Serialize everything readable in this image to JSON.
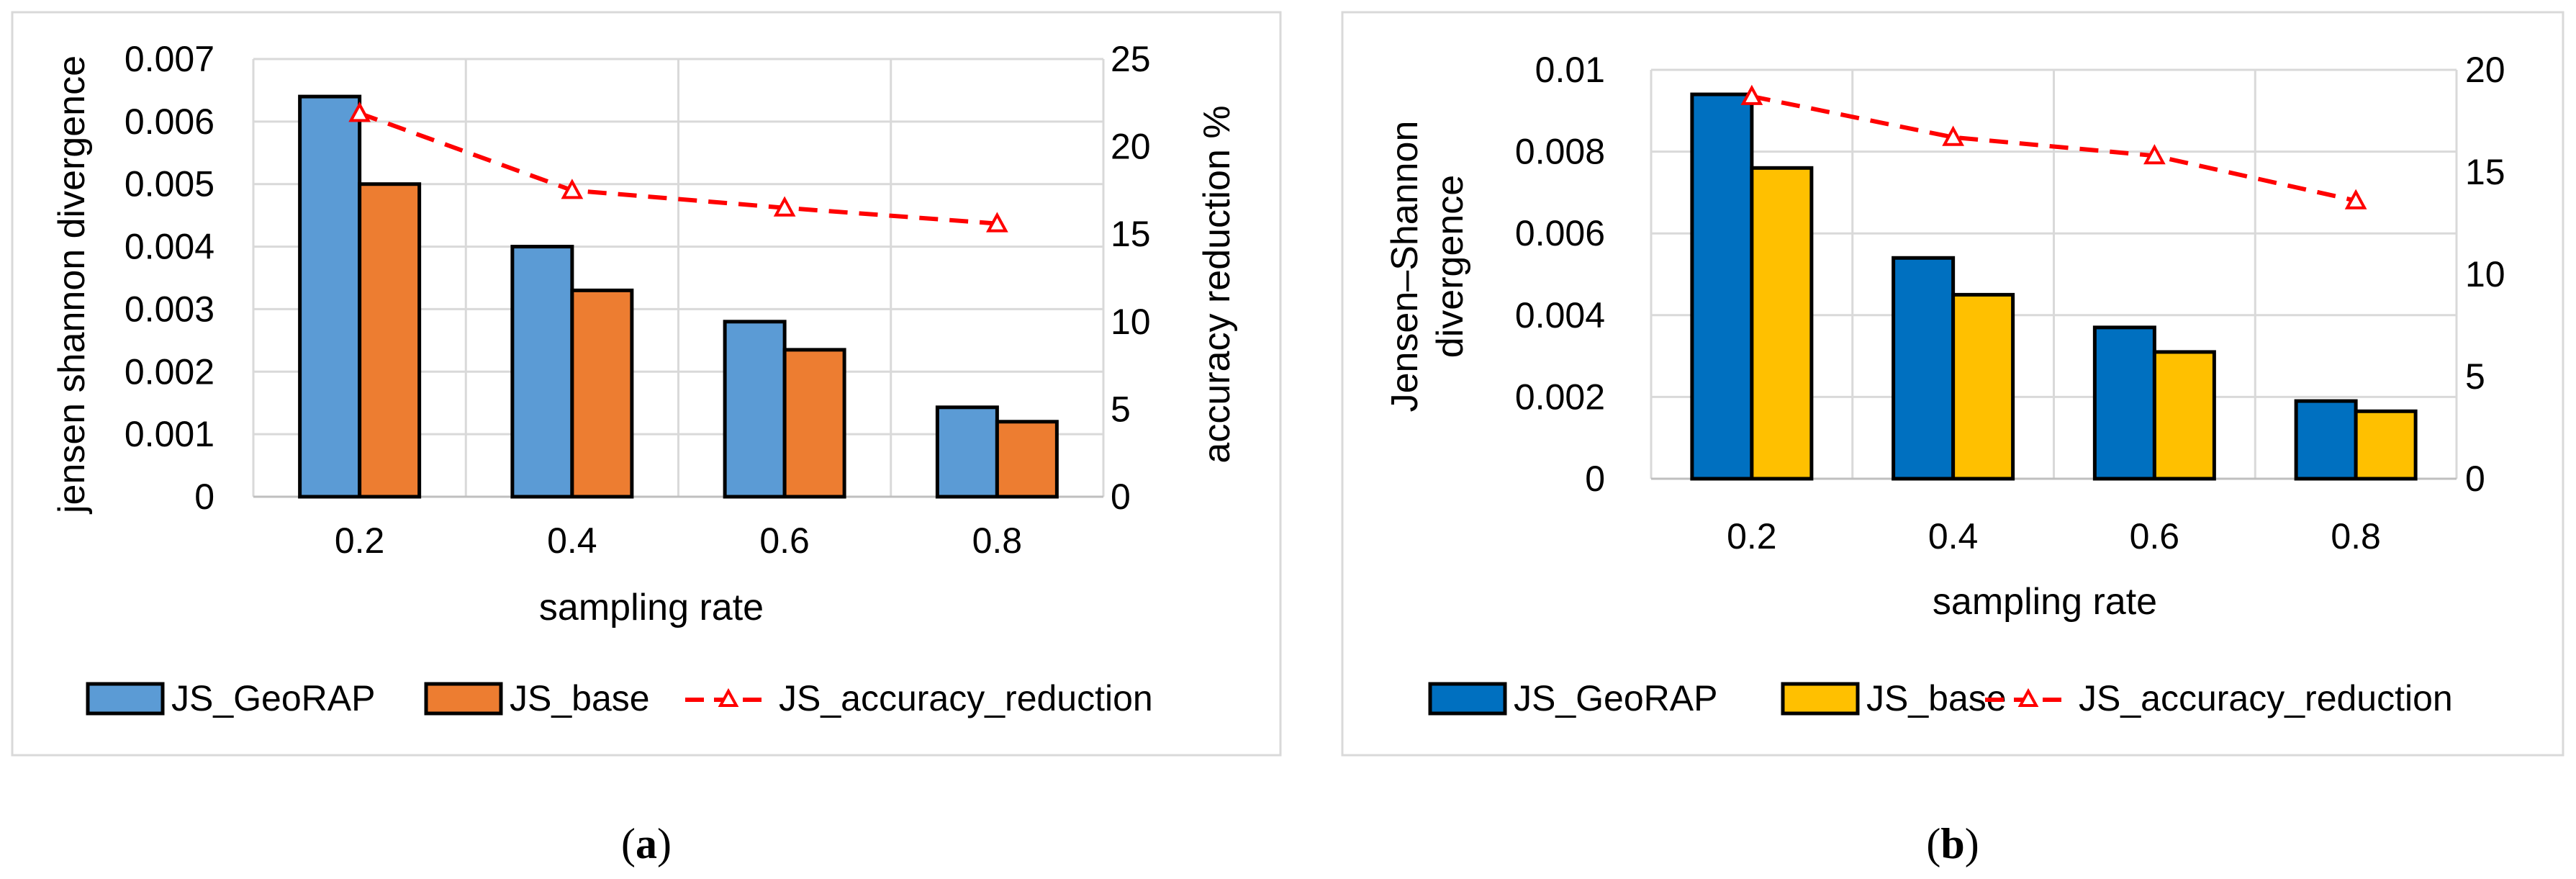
{
  "chart_data": [
    {
      "type": "bar",
      "panel": "a",
      "caption_letter": "a",
      "categories": [
        "0.2",
        "0.4",
        "0.6",
        "0.8"
      ],
      "xlabel": "sampling rate",
      "ylabel": "jensen shannon divergence",
      "y2label": "accuracy reduction %",
      "ylim": [
        0,
        0.007
      ],
      "yticks": [
        "0",
        "0.001",
        "0.002",
        "0.003",
        "0.004",
        "0.005",
        "0.006",
        "0.007"
      ],
      "y2lim": [
        0,
        25
      ],
      "y2ticks": [
        "0",
        "5",
        "10",
        "15",
        "20",
        "25"
      ],
      "series": [
        {
          "name": "JS_GeoRAP",
          "kind": "bar",
          "color": "#5b9bd5",
          "values": [
            0.0064,
            0.004,
            0.0028,
            0.00143
          ]
        },
        {
          "name": "JS_base",
          "kind": "bar",
          "color": "#ed7d31",
          "values": [
            0.005,
            0.0033,
            0.00235,
            0.0012
          ]
        },
        {
          "name": "JS_accuracy_reduction",
          "kind": "line",
          "axis": "right",
          "color": "#ff0000",
          "values": [
            21.9,
            17.5,
            16.5,
            15.6
          ]
        }
      ],
      "legend": [
        "JS_GeoRAP",
        "JS_base",
        "JS_accuracy_reduction"
      ]
    },
    {
      "type": "bar",
      "panel": "b",
      "caption_letter": "b",
      "categories": [
        "0.2",
        "0.4",
        "0.6",
        "0.8"
      ],
      "xlabel": "sampling rate",
      "ylabel_lines": [
        "Jensen–Shannon",
        "divergence"
      ],
      "ylim": [
        0,
        0.01
      ],
      "yticks": [
        "0",
        "0.002",
        "0.004",
        "0.006",
        "0.008",
        "0.01"
      ],
      "y2lim": [
        0,
        20
      ],
      "y2ticks": [
        "0",
        "5",
        "10",
        "15",
        "20"
      ],
      "series": [
        {
          "name": "JS_GeoRAP",
          "kind": "bar",
          "color": "#0070c0",
          "values": [
            0.0094,
            0.0054,
            0.0037,
            0.0019
          ]
        },
        {
          "name": "JS_base",
          "kind": "bar",
          "color": "#ffc000",
          "values": [
            0.0076,
            0.0045,
            0.0031,
            0.00165
          ]
        },
        {
          "name": "JS_accuracy_reduction",
          "kind": "line",
          "axis": "right",
          "color": "#ff0000",
          "values": [
            18.7,
            16.7,
            15.8,
            13.6
          ]
        }
      ],
      "legend": [
        "JS_GeoRAP",
        "JS_base",
        "JS_accuracy_reduction"
      ]
    }
  ]
}
